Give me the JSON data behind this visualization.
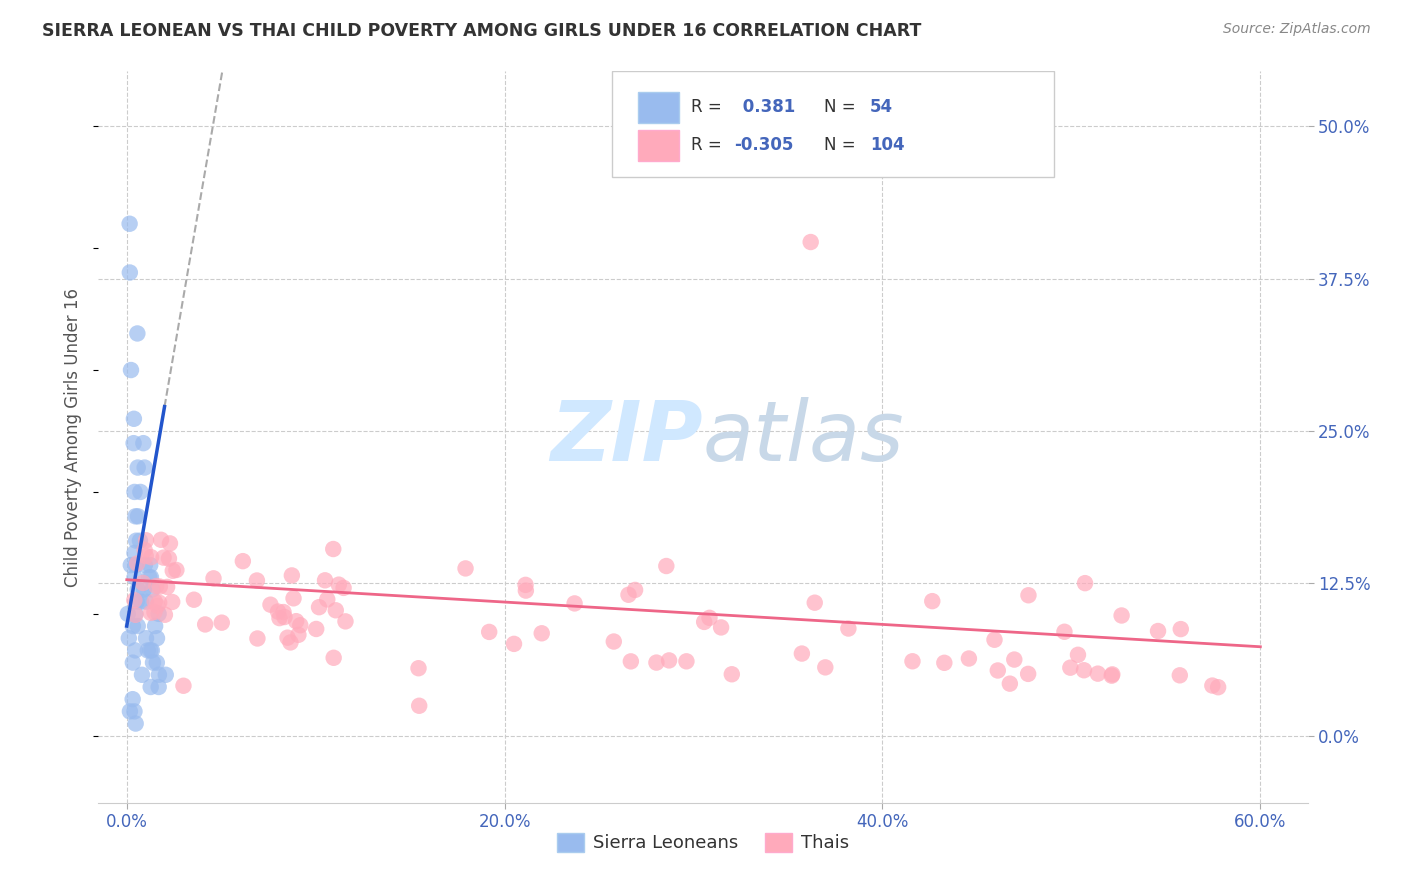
{
  "title": "SIERRA LEONEAN VS THAI CHILD POVERTY AMONG GIRLS UNDER 16 CORRELATION CHART",
  "source": "Source: ZipAtlas.com",
  "ylabel": "Child Poverty Among Girls Under 16",
  "xlabel_ticks": [
    "0.0%",
    "20.0%",
    "40.0%",
    "60.0%"
  ],
  "xlabel_vals": [
    0.0,
    0.2,
    0.4,
    0.6
  ],
  "ylabel_ticks": [
    "50.0%",
    "37.5%",
    "25.0%",
    "12.5%",
    "0.0%"
  ],
  "ylabel_vals": [
    0.5,
    0.375,
    0.25,
    0.125,
    0.0
  ],
  "xlim": [
    -0.015,
    0.625
  ],
  "ylim": [
    -0.055,
    0.545
  ],
  "blue_R": 0.381,
  "blue_N": 54,
  "pink_R": -0.305,
  "pink_N": 104,
  "blue_scatter_color": "#99BBEE",
  "pink_scatter_color": "#FFAABB",
  "blue_line_color": "#2255CC",
  "pink_line_color": "#EE6688",
  "dash_line_color": "#AAAAAA",
  "background_color": "#FFFFFF",
  "grid_color": "#CCCCCC",
  "legend_label_blue": "Sierra Leoneans",
  "legend_label_pink": "Thais",
  "watermark_text": "ZIPatlas",
  "tick_color": "#4466BB",
  "title_color": "#333333",
  "source_color": "#888888",
  "legend_R_color": "#333333",
  "legend_N_color": "#4466BB"
}
